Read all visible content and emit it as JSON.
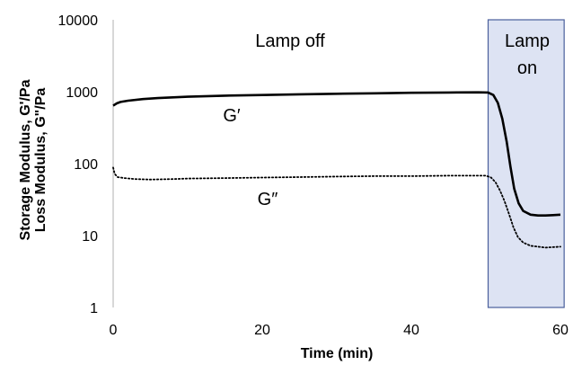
{
  "chart_data": {
    "type": "line",
    "xlabel": "Time (min)",
    "ylabel": [
      "Storage Modulus, G'/Pa",
      "Loss Modulus, G\"/Pa"
    ],
    "xlim": [
      0,
      60
    ],
    "ylim": [
      1,
      10000
    ],
    "yscale": "log",
    "x_ticks": [
      "0",
      "20",
      "40",
      "60"
    ],
    "y_ticks": [
      "1",
      "10",
      "100",
      "1000",
      "10000"
    ],
    "grid": false,
    "legend": "none",
    "series": [
      {
        "name": "G′",
        "style": "solid",
        "color": "#000000",
        "points": [
          [
            0,
            640
          ],
          [
            0.5,
            690
          ],
          [
            1,
            720
          ],
          [
            2,
            750
          ],
          [
            4,
            790
          ],
          [
            6,
            815
          ],
          [
            8,
            835
          ],
          [
            10,
            850
          ],
          [
            15,
            880
          ],
          [
            20,
            900
          ],
          [
            25,
            920
          ],
          [
            30,
            935
          ],
          [
            35,
            950
          ],
          [
            40,
            965
          ],
          [
            45,
            975
          ],
          [
            49,
            980
          ],
          [
            50.3,
            975
          ],
          [
            51,
            900
          ],
          [
            51.6,
            700
          ],
          [
            52.2,
            420
          ],
          [
            52.8,
            200
          ],
          [
            53.3,
            90
          ],
          [
            53.8,
            45
          ],
          [
            54.4,
            28
          ],
          [
            55,
            22
          ],
          [
            56,
            19.5
          ],
          [
            57,
            19
          ],
          [
            58,
            19
          ],
          [
            59,
            19.2
          ],
          [
            60,
            19.5
          ]
        ]
      },
      {
        "name": "G″",
        "style": "dotted",
        "color": "#000000",
        "points": [
          [
            0,
            88
          ],
          [
            0.2,
            72
          ],
          [
            0.6,
            65
          ],
          [
            1.5,
            63
          ],
          [
            3,
            61
          ],
          [
            5,
            60
          ],
          [
            8,
            61
          ],
          [
            10,
            62
          ],
          [
            15,
            63
          ],
          [
            20,
            64
          ],
          [
            25,
            65
          ],
          [
            30,
            66
          ],
          [
            35,
            67
          ],
          [
            40,
            67
          ],
          [
            45,
            68
          ],
          [
            48,
            68
          ],
          [
            50,
            68
          ],
          [
            50.7,
            64
          ],
          [
            51.3,
            55
          ],
          [
            51.9,
            42
          ],
          [
            52.5,
            30
          ],
          [
            53.1,
            20
          ],
          [
            53.7,
            13
          ],
          [
            54.3,
            9.5
          ],
          [
            55,
            8
          ],
          [
            56,
            7.2
          ],
          [
            57,
            7
          ],
          [
            58,
            6.8
          ],
          [
            59,
            6.9
          ],
          [
            60,
            7
          ]
        ]
      }
    ],
    "annotations": {
      "lamp_off": "Lamp off",
      "lamp_on_line1": "Lamp",
      "lamp_on_line2": "on",
      "g_prime": "G′",
      "g_double_prime": "G″"
    },
    "lamp_on_region": {
      "x_start": 50.3,
      "x_end": 60.5,
      "fill": "#dde3f3",
      "stroke": "#4a5f9c"
    }
  }
}
